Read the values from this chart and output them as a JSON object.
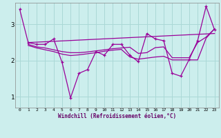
{
  "xlabel": "Windchill (Refroidissement éolien,°C)",
  "bg_color": "#cceeed",
  "grid_color": "#aad8d6",
  "line_color": "#990099",
  "xlim": [
    -0.5,
    23.5
  ],
  "ylim": [
    0.7,
    3.6
  ],
  "yticks": [
    1,
    2,
    3
  ],
  "xtick_labels": [
    "0",
    "1",
    "2",
    "3",
    "4",
    "5",
    "6",
    "7",
    "8",
    "9",
    "10",
    "11",
    "12",
    "13",
    "14",
    "15",
    "16",
    "17",
    "18",
    "19",
    "20",
    "21",
    "22",
    "23"
  ],
  "series": [
    {
      "x": [
        0,
        1,
        2,
        3,
        4,
        5,
        6,
        7,
        8,
        9,
        10,
        11,
        12,
        13,
        14,
        15,
        16,
        17,
        18,
        19,
        20,
        21,
        22,
        23
      ],
      "y": [
        3.42,
        2.5,
        2.45,
        2.45,
        2.6,
        1.95,
        0.97,
        1.65,
        1.75,
        2.25,
        2.15,
        2.45,
        2.45,
        2.15,
        1.97,
        2.75,
        2.6,
        2.55,
        1.65,
        1.57,
        2.03,
        2.55,
        3.5,
        2.85
      ],
      "marker": "+"
    },
    {
      "x": [
        1,
        23
      ],
      "y": [
        2.5,
        2.75
      ],
      "marker": null
    },
    {
      "x": [
        1,
        2,
        3,
        4,
        5,
        6,
        7,
        8,
        9,
        10,
        11,
        12,
        13,
        14,
        15,
        16,
        17,
        18,
        19,
        20,
        21,
        22,
        23
      ],
      "y": [
        2.45,
        2.38,
        2.35,
        2.3,
        2.25,
        2.22,
        2.22,
        2.24,
        2.27,
        2.3,
        2.33,
        2.35,
        2.37,
        2.2,
        2.22,
        2.36,
        2.38,
        2.08,
        2.08,
        2.08,
        2.5,
        2.65,
        2.88
      ],
      "marker": null
    },
    {
      "x": [
        1,
        2,
        3,
        4,
        5,
        6,
        7,
        8,
        9,
        10,
        11,
        12,
        13,
        14,
        15,
        16,
        17,
        18,
        19,
        20,
        21,
        22,
        23
      ],
      "y": [
        2.42,
        2.35,
        2.3,
        2.25,
        2.18,
        2.14,
        2.16,
        2.19,
        2.22,
        2.26,
        2.29,
        2.31,
        2.1,
        2.04,
        2.07,
        2.1,
        2.12,
        2.02,
        2.02,
        2.02,
        2.02,
        2.62,
        2.88
      ],
      "marker": null
    }
  ]
}
